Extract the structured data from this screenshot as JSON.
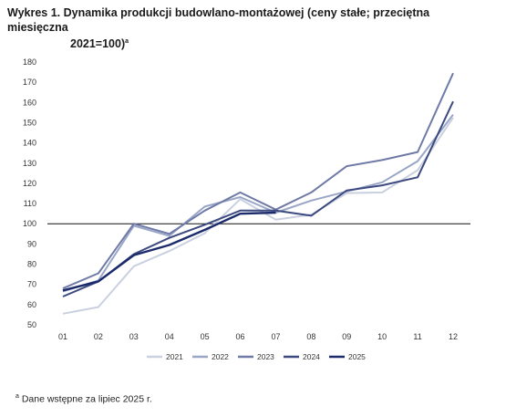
{
  "title": {
    "line1": "Wykres 1. Dynamika produkcji budowlano-montażowej (ceny stałe; przeciętna miesięczna",
    "line2": "2021=100)",
    "sup": "a"
  },
  "footnote": {
    "sup": "a",
    "text": " Dane wstępne za lipiec 2025 r."
  },
  "chart_data": {
    "type": "line",
    "title": "Wykres 1. Dynamika produkcji budowlano-montażowej (ceny stałe; przeciętna miesięczna 2021=100)",
    "categories": [
      "01",
      "02",
      "03",
      "04",
      "05",
      "06",
      "07",
      "08",
      "09",
      "10",
      "11",
      "12"
    ],
    "ylim": [
      50,
      180
    ],
    "yticks": [
      50,
      60,
      70,
      80,
      90,
      100,
      110,
      120,
      130,
      140,
      150,
      160,
      170,
      180
    ],
    "reference_line": 100,
    "grid": false,
    "legend_position": "bottom",
    "series": [
      {
        "name": "2021",
        "color": "#c9d0e0",
        "width": 2,
        "values": [
          55.5,
          58.8,
          79.0,
          86.5,
          95.3,
          112.2,
          102.0,
          104.5,
          115.2,
          115.5,
          126.5,
          152.5
        ]
      },
      {
        "name": "2022",
        "color": "#9aa6c8",
        "width": 2,
        "values": [
          66.5,
          72.0,
          99.0,
          94.0,
          108.5,
          113.2,
          105.5,
          111.5,
          116.0,
          120.5,
          131.0,
          154.0
        ]
      },
      {
        "name": "2023",
        "color": "#6f7aa6",
        "width": 2,
        "values": [
          68.0,
          75.5,
          100.0,
          95.0,
          106.5,
          115.5,
          107.0,
          115.5,
          128.5,
          131.5,
          135.5,
          174.5
        ]
      },
      {
        "name": "2024",
        "color": "#3c4a80",
        "width": 2,
        "values": [
          64.0,
          71.5,
          85.0,
          93.0,
          99.5,
          106.5,
          106.5,
          104.0,
          116.5,
          119.0,
          123.0,
          160.5
        ]
      },
      {
        "name": "2025",
        "color": "#1b2b6b",
        "width": 2.4,
        "values": [
          67.0,
          71.5,
          84.5,
          89.5,
          97.0,
          105.0,
          105.5,
          null,
          null,
          null,
          null,
          null
        ]
      }
    ]
  }
}
